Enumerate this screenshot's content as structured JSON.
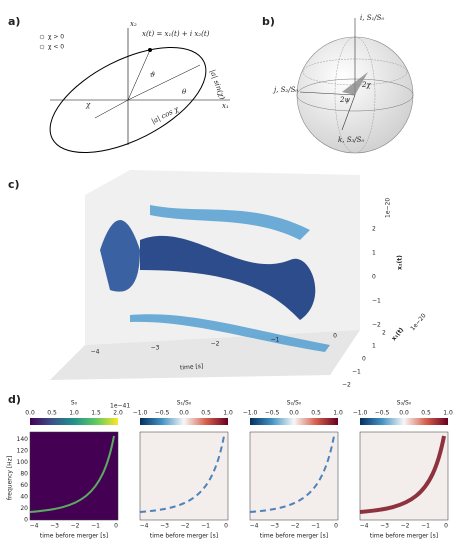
{
  "panel_a": {
    "label": "a)",
    "legend": [
      "χ > 0",
      "χ < 0"
    ],
    "axis_x": "x₁",
    "axis_y": "x₂",
    "equation": "x(t) = x₁(t) + i x₂(t)",
    "angle_phase": "ϑ",
    "angle_orient": "θ",
    "angle_ellip": "χ",
    "minor": "|a| sin(χ)",
    "major": "|a| cos χ"
  },
  "panel_b": {
    "label": "b)",
    "axis_i": "i, S₁/S₀",
    "axis_j": "j, S₂/S₀",
    "axis_k": "k, S₃/S₀",
    "psi": "2ψ",
    "chi": "2χ"
  },
  "panel_c": {
    "label": "c)",
    "xlabel": "time [s]",
    "xticks": [
      "−4",
      "−3",
      "−2",
      "−1",
      "0"
    ],
    "ylabel": "x₁(t)",
    "yticks": [
      "−2",
      "−1",
      "0",
      "1",
      "2"
    ],
    "yexp": "1e−20",
    "zlabel": "x₂(t)",
    "zticks": [
      "−2",
      "−1",
      "0",
      "1",
      "2"
    ],
    "zexp": "1e−20"
  },
  "panel_d": {
    "label": "d)",
    "ylabel": "frequency [Hz]",
    "yticks": [
      "0",
      "20",
      "40",
      "60",
      "80",
      "100",
      "120",
      "140"
    ],
    "xlabel": "time before merger [s]",
    "xticks": [
      "−4",
      "−3",
      "−2",
      "−1",
      "0"
    ],
    "plots": [
      {
        "title": "S₀",
        "cticks": [
          "0.0",
          "0.5",
          "1.0",
          "1.5",
          "2.0"
        ],
        "cexp": "1e−41"
      },
      {
        "title": "S₁/S₀",
        "cticks": [
          "−1.0",
          "−0.5",
          "0.0",
          "0.5",
          "1.0"
        ]
      },
      {
        "title": "S₂/S₀",
        "cticks": [
          "−1.0",
          "−0.5",
          "0.0",
          "0.5",
          "1.0"
        ]
      },
      {
        "title": "S₃/S₀",
        "cticks": [
          "−1.0",
          "−0.5",
          "0.0",
          "0.5",
          "1.0"
        ]
      }
    ]
  }
}
